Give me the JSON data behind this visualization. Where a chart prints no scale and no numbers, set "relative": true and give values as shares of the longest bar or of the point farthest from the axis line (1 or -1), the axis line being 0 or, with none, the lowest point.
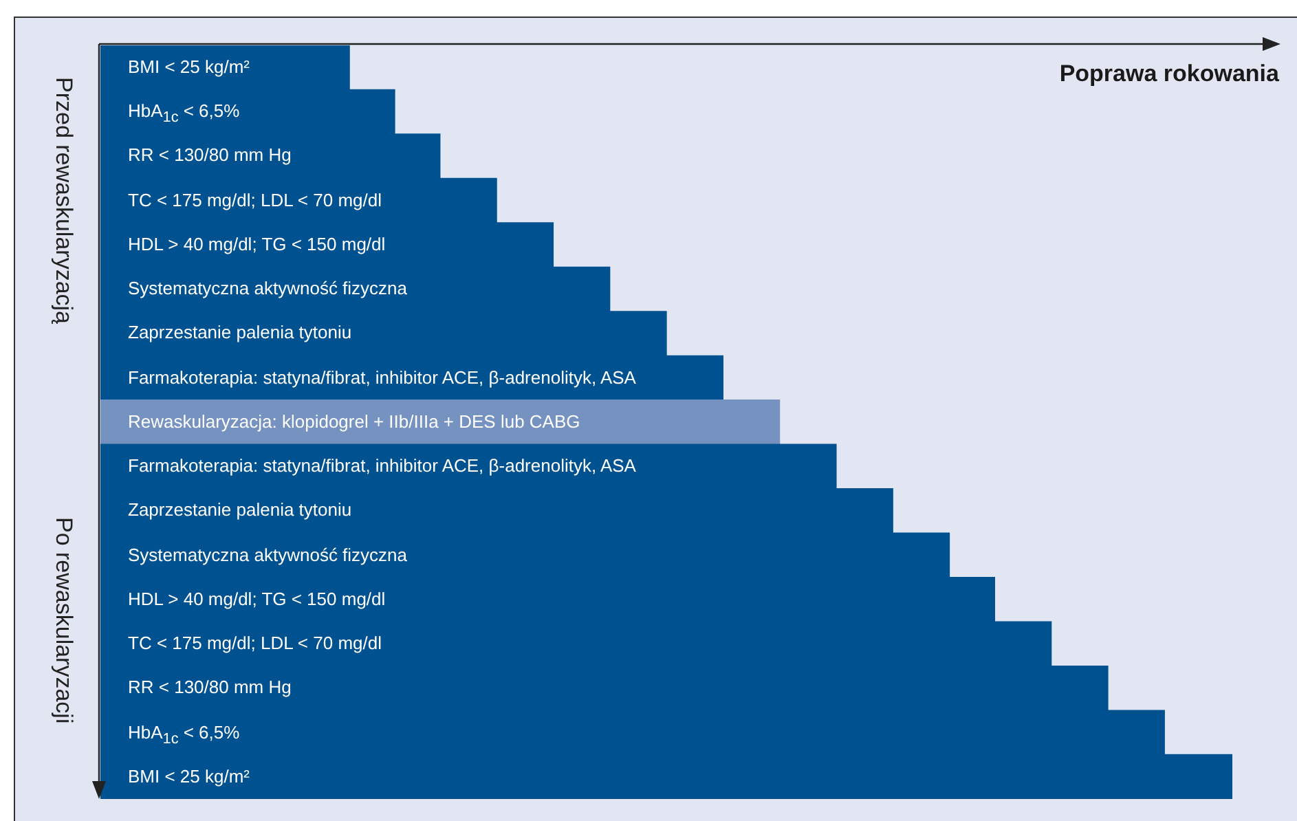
{
  "chart_data": {
    "type": "bar",
    "orientation": "horizontal",
    "relative": true,
    "xlabel": "Poprawa rokowania",
    "annotations": [
      "Przed rewaskularyzacją",
      "Po rewaskularyzacji"
    ],
    "categories": [
      "BMI < 25 kg/m²",
      "HbA$_{1c}$ < 6,5%",
      "RR < 130/80 mm Hg",
      "TC < 175 mg/dl; LDL < 70 mg/dl",
      "HDL > 40 mg/dl; TG < 150 mg/dl",
      "Systematyczna aktywność fizyczna",
      "Zaprzestanie palenia tytoniu",
      "Farmakoterapia: statyna/fibrat, inhibitor ACE, β-adrenolityk, ASA",
      "Rewaskularyzacja: klopidogrel + IIb/IIIa + DES lub CABG",
      "Farmakoterapia: statyna/fibrat, inhibitor ACE, β-adrenolityk, ASA",
      "Zaprzestanie palenia tytoniu",
      "Systematyczna aktywność fizyczna",
      "HDL > 40 mg/dl; TG < 150 mg/dl",
      "TC < 175 mg/dl; LDL < 70 mg/dl",
      "RR < 130/80 mm Hg",
      "HbA$_{1c}$ < 6,5%",
      "BMI < 25 kg/m²"
    ],
    "values": [
      0.22,
      0.26,
      0.3,
      0.35,
      0.4,
      0.45,
      0.5,
      0.55,
      0.6,
      0.65,
      0.7,
      0.75,
      0.79,
      0.84,
      0.89,
      0.94,
      1
    ],
    "colors": [
      "#00518f",
      "#00518f",
      "#00518f",
      "#00518f",
      "#00518f",
      "#00518f",
      "#00518f",
      "#00518f",
      "#7592c0",
      "#00518f",
      "#00518f",
      "#00518f",
      "#00518f",
      "#00518f",
      "#00518f",
      "#00518f",
      "#00518f"
    ]
  }
}
